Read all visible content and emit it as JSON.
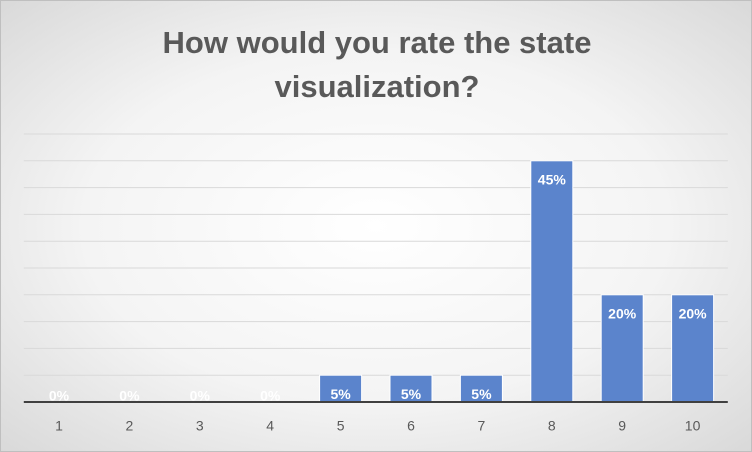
{
  "chart_data": {
    "type": "bar",
    "title": "How would you rate the state visualization?",
    "categories": [
      "1",
      "2",
      "3",
      "4",
      "5",
      "6",
      "7",
      "8",
      "9",
      "10"
    ],
    "values": [
      0,
      0,
      0,
      0,
      5,
      5,
      5,
      45,
      20,
      20
    ],
    "value_labels": [
      "0%",
      "0%",
      "0%",
      "0%",
      "5%",
      "5%",
      "5%",
      "45%",
      "20%",
      "20%"
    ],
    "color": "#5b84cc",
    "ylim": [
      0,
      50
    ],
    "yticks": [
      0,
      5,
      10,
      15,
      20,
      25,
      30,
      35,
      40,
      45,
      50
    ],
    "grid": true
  }
}
